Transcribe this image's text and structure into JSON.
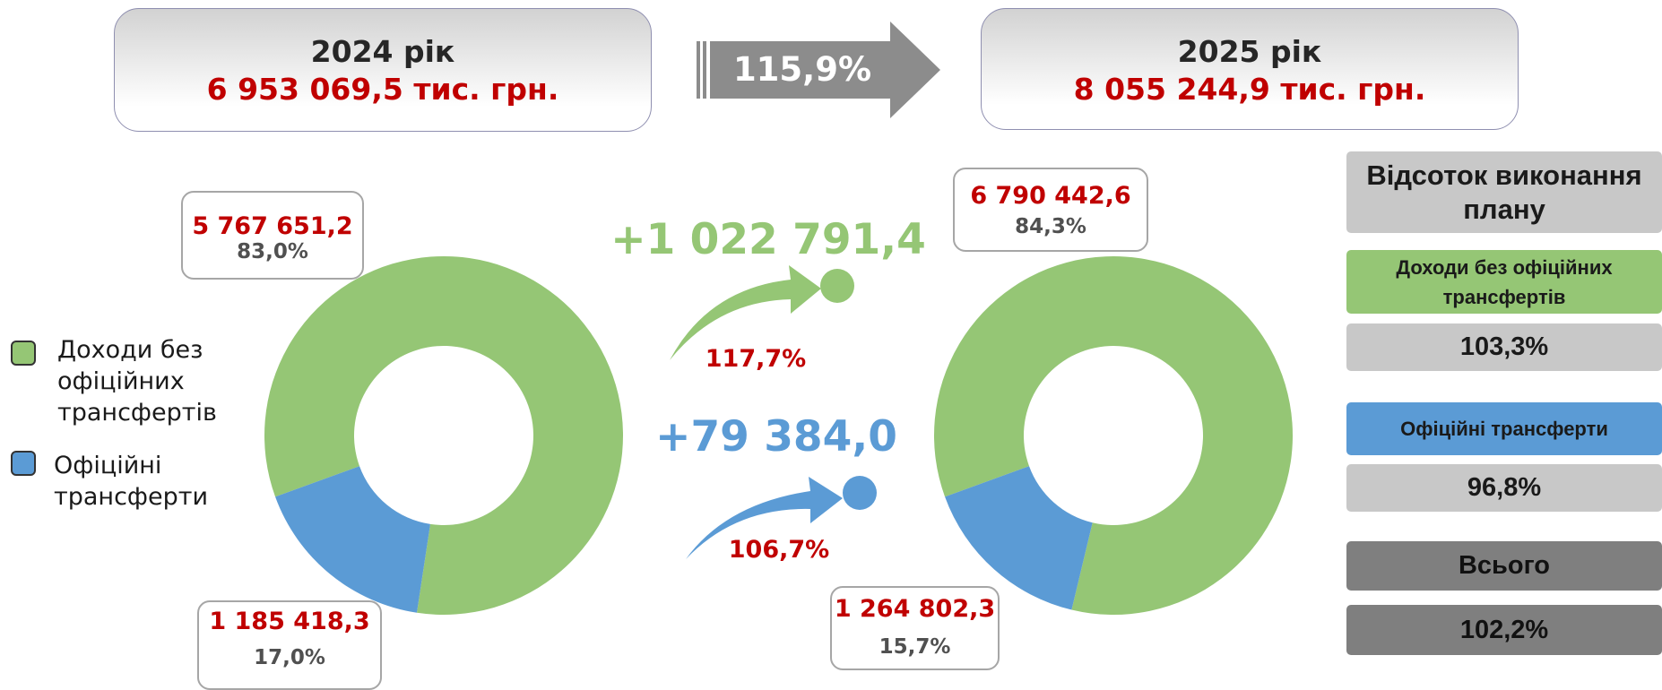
{
  "header": {
    "start": {
      "year": "2024 рік",
      "amount": "6 953 069,5 тис. грн."
    },
    "growth": "115,9%",
    "end": {
      "year": "2025 рік",
      "amount": "8 055 244,9 тис. грн."
    }
  },
  "changes": [
    {
      "amount": "+1 022 791,4",
      "percent": "117,7%",
      "color": "#95c675"
    },
    {
      "amount": "+79 384,0",
      "percent": "106,7%",
      "color": "#5b9bd5"
    }
  ],
  "chart_data": [
    {
      "type": "pie",
      "categories": [
        "Доходи без офіційних трансфертів",
        "Офіційні трансферти"
      ],
      "colors": [
        "#95c675",
        "#5b9bd5"
      ],
      "values": [
        5767651.2,
        1185418.3
      ],
      "value_labels": [
        "5 767 651,2",
        "1 185 418,3"
      ],
      "percents": [
        83.0,
        17.0
      ],
      "percent_labels": [
        "83,0%",
        "17,0%"
      ]
    },
    {
      "type": "pie",
      "colors": [
        "#95c675",
        "#5b9bd5"
      ],
      "values": [
        6790442.6,
        1264802.3
      ],
      "value_labels": [
        "6 790 442,6",
        "1 264 802,3"
      ],
      "percents": [
        84.3,
        15.7
      ],
      "percent_labels": [
        "84,3%",
        "15,7%"
      ]
    }
  ],
  "plan": {
    "title": "Відсоток виконання плану",
    "rows": [
      {
        "label": "Доходи без офіційних трансфертів",
        "value": "103,3%"
      },
      {
        "label": "Офіційні трансферти",
        "value": "96,8%"
      },
      {
        "label": "Всього",
        "value": "102,2%"
      }
    ]
  }
}
